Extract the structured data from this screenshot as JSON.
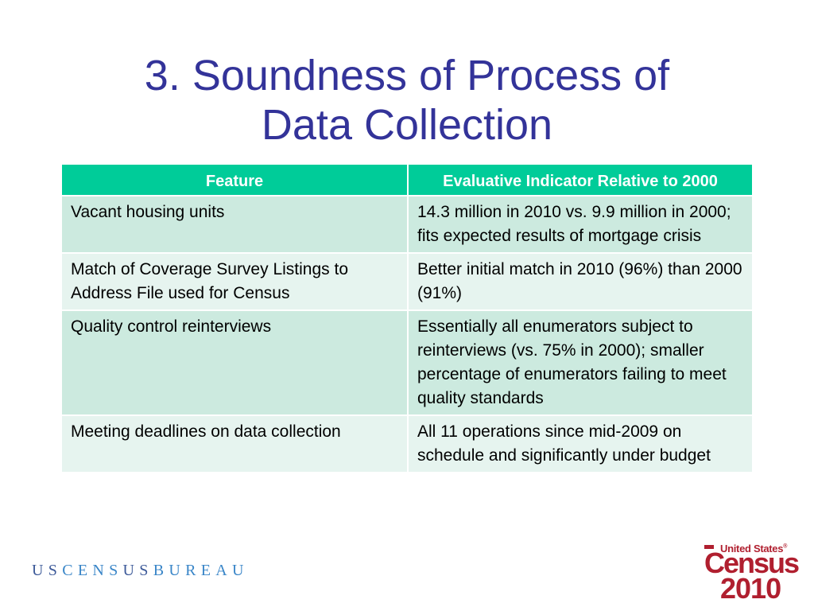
{
  "title": {
    "line1": "3. Soundness of Process of",
    "line2": "Data Collection"
  },
  "table": {
    "headers": [
      "Feature",
      "Evaluative Indicator Relative to 2000"
    ],
    "rows": [
      [
        "Vacant housing units",
        "14.3 million in 2010 vs. 9.9 million in 2000; fits expected results of mortgage crisis"
      ],
      [
        "Match of Coverage Survey Listings to Address File used for Census",
        "Better initial match in 2010 (96%) than 2000 (91%)"
      ],
      [
        "Quality control reinterviews",
        "Essentially all enumerators subject to reinterviews (vs. 75% in 2000); smaller percentage of enumerators failing to meet quality standards"
      ],
      [
        "Meeting deadlines on data collection",
        "All 11 operations since mid-2009 on schedule and significantly under budget"
      ]
    ]
  },
  "footer": {
    "bureau_logo": [
      "U",
      "S",
      "C",
      "E",
      "N",
      "S",
      "U",
      "S",
      "B",
      "U",
      "R",
      "E",
      "A",
      "U"
    ],
    "census_logo": {
      "top": "United States",
      "reg": "®",
      "word": "Census",
      "year": "2010"
    }
  },
  "colors": {
    "title": "#333399",
    "header_bg": "#00cc99",
    "row_dark": "#cceadf",
    "row_light": "#e6f4ef",
    "logo_red": "#b01f2f",
    "bureau_blue": "#3d5a99"
  }
}
